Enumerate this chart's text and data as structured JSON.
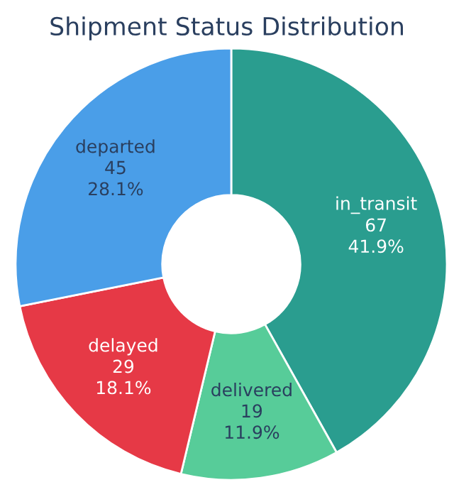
{
  "chart_data": {
    "type": "donut",
    "title": "Shipment Status Distribution",
    "categories": [
      "in_transit",
      "delivered",
      "delayed",
      "departed"
    ],
    "values": [
      67,
      19,
      29,
      45
    ],
    "colors": [
      "#2a9d8f",
      "#57cc99",
      "#e63946",
      "#4a9ee8"
    ],
    "value_labels": [
      "67\n41.9%",
      "19\n11.9%",
      "29\n18.1%",
      "45\n28.1%"
    ],
    "legend": false
  }
}
